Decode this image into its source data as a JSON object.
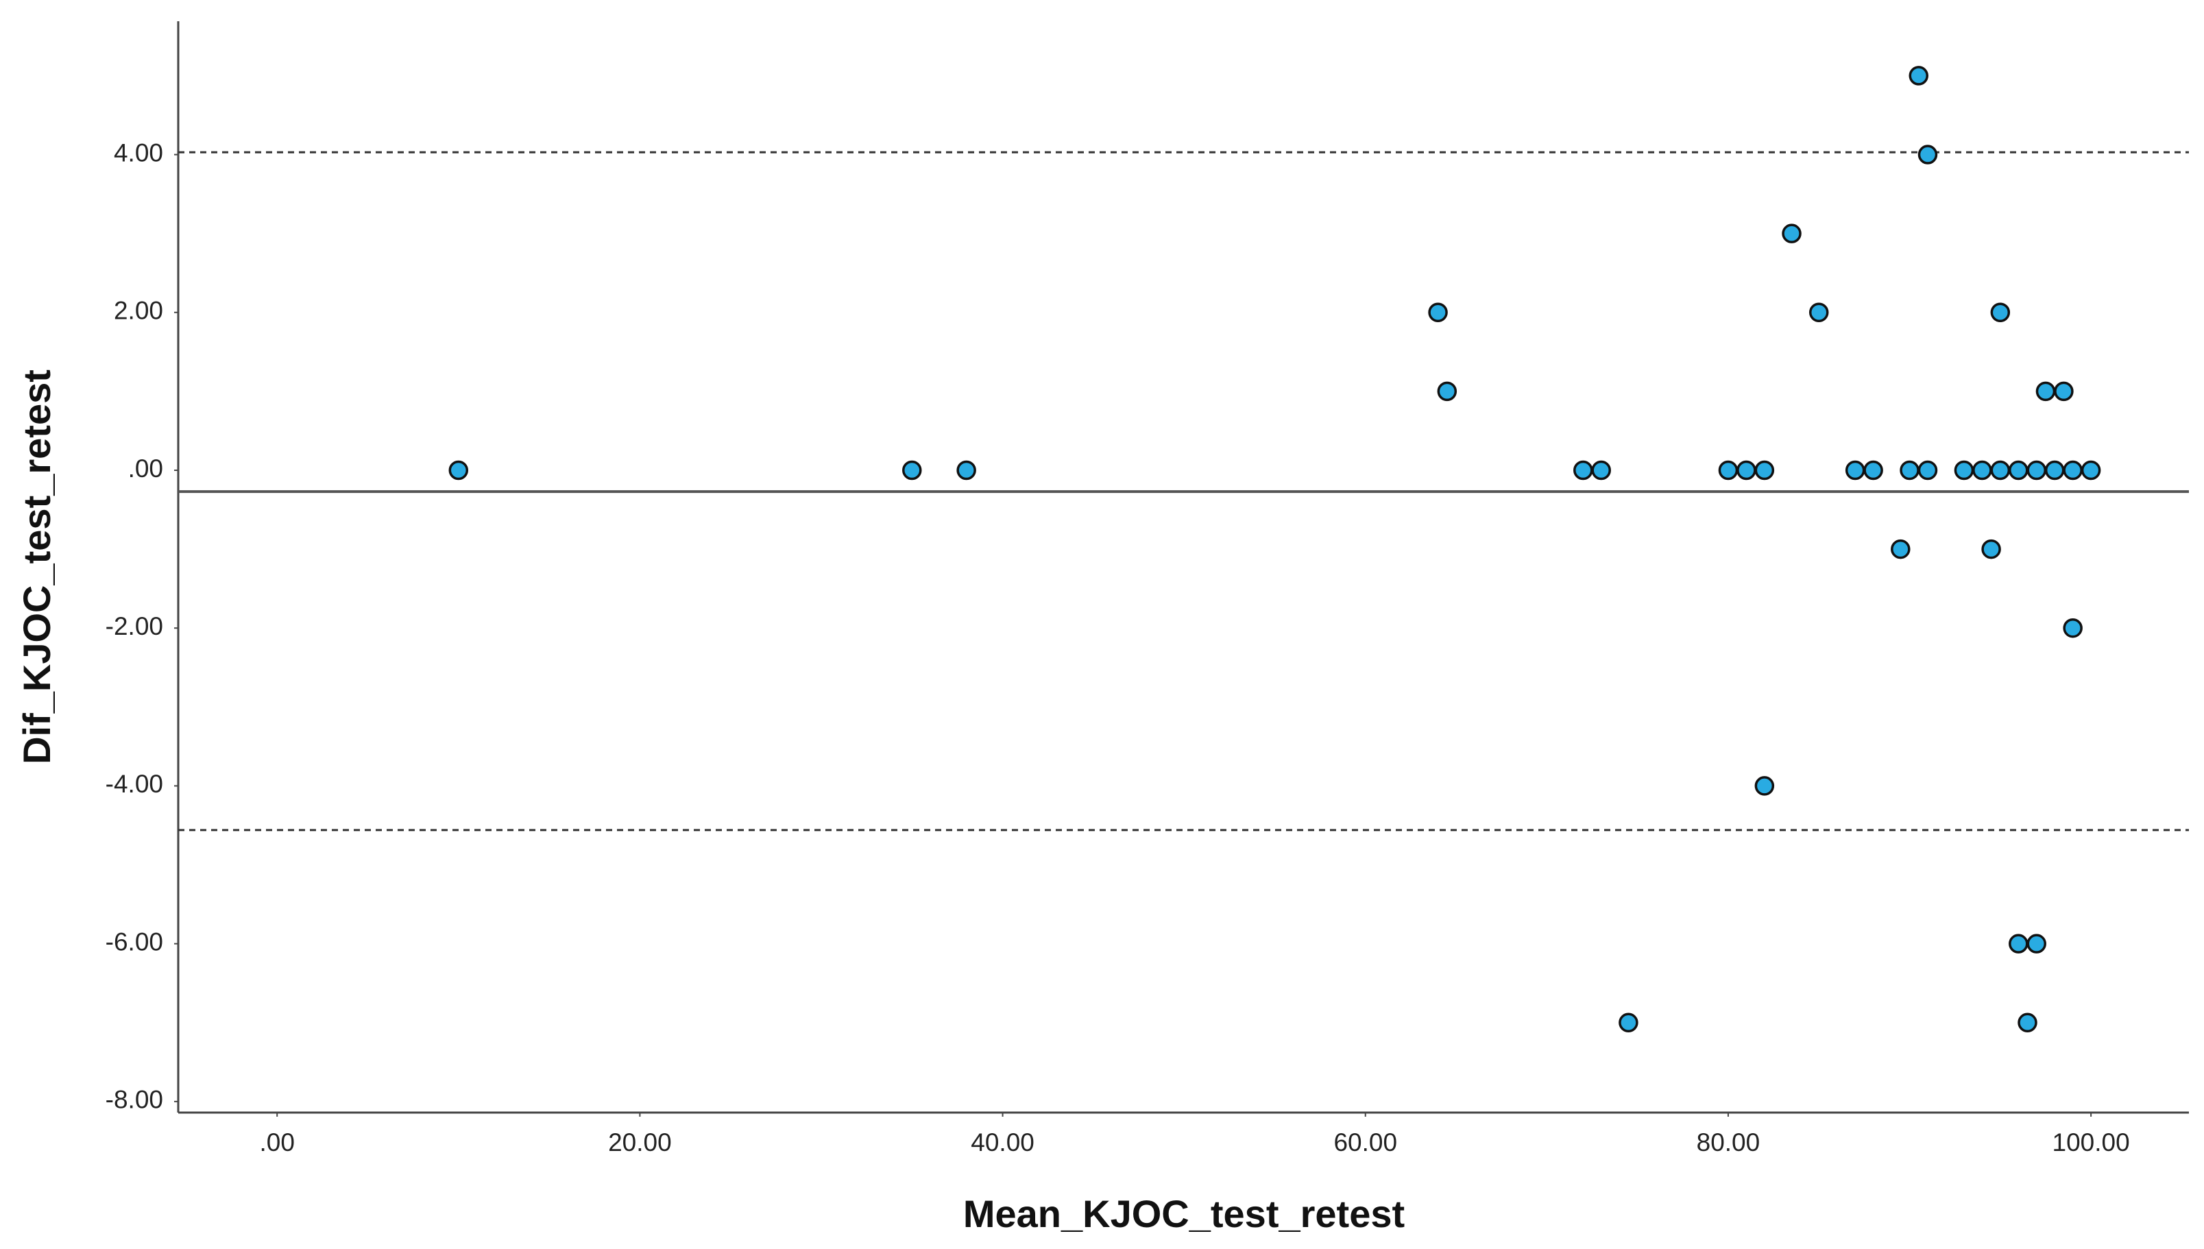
{
  "chart_data": {
    "type": "scatter",
    "x_label": "Mean_KJOC_test_retest",
    "y_label": "Dif_KJOC_test_retest",
    "xlim": [
      -5.45,
      105.4
    ],
    "ylim": [
      -8.14,
      5.69
    ],
    "xticks": [
      {
        "value": 0,
        "label": ".00"
      },
      {
        "value": 20,
        "label": "20.00"
      },
      {
        "value": 40,
        "label": "40.00"
      },
      {
        "value": 60,
        "label": "60.00"
      },
      {
        "value": 80,
        "label": "80.00"
      },
      {
        "value": 100,
        "label": "100.00"
      }
    ],
    "yticks": [
      {
        "value": -8,
        "label": "-8.00"
      },
      {
        "value": -6,
        "label": "-6.00"
      },
      {
        "value": -4,
        "label": "-4.00"
      },
      {
        "value": -2,
        "label": "-2.00"
      },
      {
        "value": 0,
        "label": ".00"
      },
      {
        "value": 2,
        "label": "2.00"
      },
      {
        "value": 4,
        "label": "4.00"
      }
    ],
    "grid": false,
    "reference_lines": [
      {
        "value": 4.03,
        "style": "dashed"
      },
      {
        "value": -0.27,
        "style": "solid"
      },
      {
        "value": -4.56,
        "style": "dashed"
      }
    ],
    "series": [
      {
        "color": "#29abe2",
        "x": [
          10,
          35,
          38,
          64,
          64.5,
          72,
          73,
          74.5,
          80,
          81,
          82,
          82,
          83.5,
          85,
          87,
          88,
          89.5,
          90,
          90.5,
          91,
          91,
          93,
          94,
          94.5,
          95,
          95,
          96,
          96,
          96.5,
          97,
          97,
          97.5,
          98,
          98.5,
          99,
          99,
          100
        ],
        "values": [
          0,
          0,
          0,
          2,
          1,
          0,
          0,
          -7,
          0,
          0,
          0,
          -4,
          3,
          2,
          0,
          0,
          -1,
          0,
          5,
          4,
          0,
          0,
          0,
          -1,
          0,
          2,
          0,
          -6,
          -7,
          0,
          -6,
          1,
          0,
          1,
          0,
          -2,
          0
        ]
      }
    ]
  }
}
